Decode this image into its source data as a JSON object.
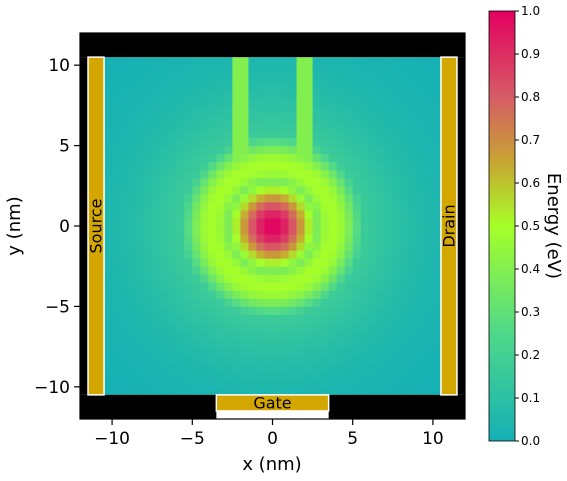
{
  "chart_data": {
    "type": "heatmap",
    "title": "",
    "xlabel": "x (nm)",
    "ylabel": "y (nm)",
    "xlim": [
      -12,
      12
    ],
    "ylim": [
      -12,
      12
    ],
    "x_ticks": [
      -10,
      -5,
      0,
      5,
      10
    ],
    "y_ticks": [
      10,
      5,
      0,
      -5,
      -10
    ],
    "grid": false,
    "field": {
      "description_units": "eV",
      "peak_value": 1.0,
      "peak_center": [
        0,
        0
      ],
      "background_value": 0.0,
      "core_radius_nm": 2.0,
      "ring_radius_nm": 3.8,
      "ring_value": 0.5,
      "channels": [
        {
          "x_center": -2,
          "width": 1,
          "y_from": 4,
          "y_to": 10.5,
          "value": 0.4
        },
        {
          "x_center": 2,
          "width": 1,
          "y_from": 4,
          "y_to": 10.5,
          "value": 0.4
        }
      ]
    },
    "electrodes": [
      {
        "label": "Source",
        "x_range": [
          -11.5,
          -10.5
        ],
        "y_range": [
          -10.5,
          10.5
        ],
        "label_orientation": "vertical"
      },
      {
        "label": "Drain",
        "x_range": [
          10.5,
          11.5
        ],
        "y_range": [
          -10.5,
          10.5
        ],
        "label_orientation": "vertical"
      },
      {
        "label": "Gate",
        "x_range": [
          -3.5,
          3.5
        ],
        "y_range": [
          -11.5,
          -10.5
        ],
        "label_orientation": "horizontal"
      }
    ],
    "colorbar": {
      "label": "Energy (eV)",
      "range": [
        0.0,
        1.0
      ],
      "ticks": [
        "0.0",
        "0.1",
        "0.2",
        "0.3",
        "0.4",
        "0.5",
        "0.6",
        "0.7",
        "0.8",
        "0.9",
        "1.0"
      ],
      "colormap_stops": [
        {
          "value": 0.0,
          "color": "#15b0b5"
        },
        {
          "value": 0.25,
          "color": "#4fd88a"
        },
        {
          "value": 0.5,
          "color": "#a6ff28"
        },
        {
          "value": 0.65,
          "color": "#c8a532"
        },
        {
          "value": 0.8,
          "color": "#d65c66"
        },
        {
          "value": 1.0,
          "color": "#e3005f"
        }
      ]
    },
    "colors": {
      "electrode": "#d4a700",
      "frame": "#000000"
    }
  }
}
